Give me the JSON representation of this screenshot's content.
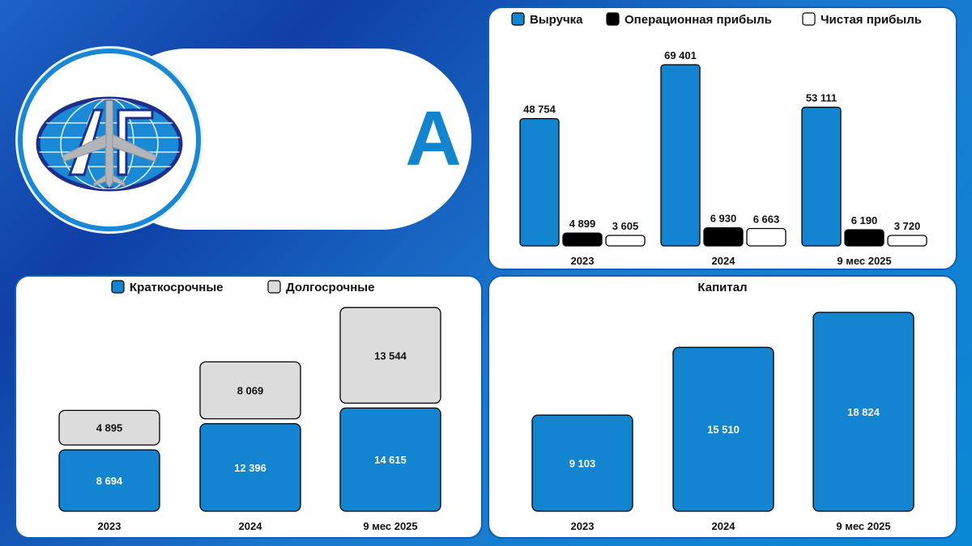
{
  "rating": "А",
  "logo": {
    "text": "АГ"
  },
  "colors": {
    "revenue": "#1384d0",
    "operating": "#000000",
    "net": "#ffffff",
    "short": "#1384d0",
    "long": "#dcdcdc",
    "capital": "#1384d0"
  },
  "chart_data": [
    {
      "type": "bar",
      "categories": [
        "2023",
        "2024",
        "9 мес 2025"
      ],
      "series": [
        {
          "name": "Выручка",
          "values": [
            48754,
            69401,
            53111
          ],
          "labels": [
            "48 754",
            "69 401",
            "53 111"
          ]
        },
        {
          "name": "Операционная прибыль",
          "values": [
            4899,
            6930,
            6190
          ],
          "labels": [
            "4 899",
            "6 930",
            "6 190"
          ]
        },
        {
          "name": "Чистая прибыль",
          "values": [
            3605,
            6663,
            3720
          ],
          "labels": [
            "3 605",
            "6 663",
            "3 720"
          ]
        }
      ],
      "legend": "top"
    },
    {
      "type": "bar",
      "stacked": true,
      "categories": [
        "2023",
        "2024",
        "9 мес 2025"
      ],
      "series": [
        {
          "name": "Краткосрочные",
          "values": [
            8694,
            12396,
            14615
          ],
          "labels": [
            "8 694",
            "12 396",
            "14 615"
          ]
        },
        {
          "name": "Долгосрочные",
          "values": [
            4895,
            8069,
            13544
          ],
          "labels": [
            "4 895",
            "8 069",
            "13 544"
          ]
        }
      ],
      "legend": "top"
    },
    {
      "type": "bar",
      "title": "Капитал",
      "categories": [
        "2023",
        "2024",
        "9 мес 2025"
      ],
      "values": [
        9103,
        15510,
        18824
      ],
      "labels": [
        "9 103",
        "15 510",
        "18 824"
      ]
    }
  ]
}
